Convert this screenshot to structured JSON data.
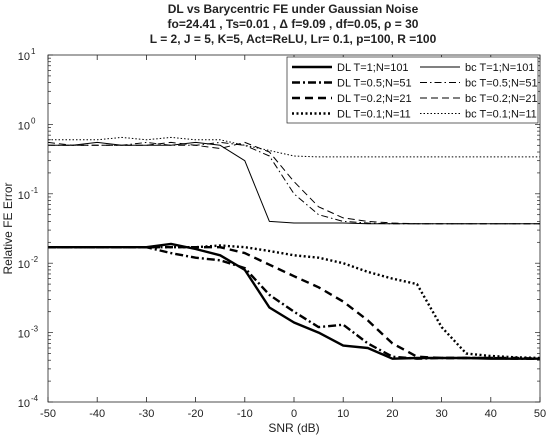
{
  "chart_data": {
    "type": "line",
    "title_lines": [
      "DL vs Barycentric FE under Gaussian Noise",
      "fo=24.41 , Ts=0.01 , Δ f=9.09 , df=0.05, ρ = 30",
      "L = 2, J = 5, K=5, Act=ReLU, Lr= 0.1, p=100, R =100"
    ],
    "xlabel": "SNR (dB)",
    "ylabel": "Relative FE Error",
    "xlim": [
      -50,
      50
    ],
    "ylim": [
      0.0001,
      10
    ],
    "yscale": "log",
    "xticks": [
      -50,
      -40,
      -30,
      -20,
      -10,
      0,
      10,
      20,
      30,
      40,
      50
    ],
    "xtick_labels": [
      "-50",
      "-40",
      "-30",
      "-20",
      "-10",
      "0",
      "10",
      "20",
      "30",
      "40",
      "50"
    ],
    "yticks": [
      0.0001,
      0.001,
      0.01,
      0.1,
      1,
      10
    ],
    "ytick_labels": [
      {
        "base": "10",
        "exp": "-4"
      },
      {
        "base": "10",
        "exp": "-3"
      },
      {
        "base": "10",
        "exp": "-2"
      },
      {
        "base": "10",
        "exp": "-1"
      },
      {
        "base": "10",
        "exp": "0"
      },
      {
        "base": "10",
        "exp": "1"
      }
    ],
    "grid": false,
    "legend_position": "top-right",
    "x": [
      -50,
      -45,
      -40,
      -35,
      -30,
      -25,
      -20,
      -15,
      -10,
      -5,
      0,
      5,
      10,
      15,
      20,
      25,
      30,
      35,
      40,
      45,
      50
    ],
    "series": [
      {
        "name": "DL T=1;N=101",
        "style": "solid",
        "weight": "thick",
        "values": [
          0.017,
          0.017,
          0.017,
          0.017,
          0.017,
          0.019,
          0.016,
          0.013,
          0.008,
          0.0023,
          0.0014,
          0.001,
          0.00065,
          0.0006,
          0.00042,
          0.00043,
          0.00043,
          0.00043,
          0.00042,
          0.00042,
          0.00042
        ]
      },
      {
        "name": "DL T=0.5;N=51",
        "style": "dashdot",
        "weight": "thick",
        "values": [
          0.017,
          0.017,
          0.017,
          0.017,
          0.017,
          0.014,
          0.012,
          0.011,
          0.0085,
          0.0035,
          0.002,
          0.0012,
          0.0013,
          0.0007,
          0.00045,
          0.00042,
          0.00043,
          0.00043,
          0.00043,
          0.00042,
          0.00042
        ]
      },
      {
        "name": "DL T=0.2;N=21",
        "style": "dashed",
        "weight": "thick",
        "values": [
          0.017,
          0.017,
          0.017,
          0.017,
          0.017,
          0.017,
          0.017,
          0.017,
          0.014,
          0.0095,
          0.0065,
          0.0045,
          0.0028,
          0.0015,
          0.0007,
          0.00045,
          0.00043,
          0.00043,
          0.00043,
          0.00043,
          0.00042
        ]
      },
      {
        "name": "DL T=0.1;N=11",
        "style": "dotted",
        "weight": "thick",
        "values": [
          0.017,
          0.017,
          0.017,
          0.017,
          0.017,
          0.017,
          0.017,
          0.018,
          0.017,
          0.015,
          0.013,
          0.012,
          0.01,
          0.0075,
          0.006,
          0.005,
          0.0012,
          0.0005,
          0.00046,
          0.00044,
          0.00043
        ]
      },
      {
        "name": "bc T=1;N=101",
        "style": "solid",
        "weight": "thin",
        "values": [
          0.5,
          0.5,
          0.55,
          0.5,
          0.5,
          0.5,
          0.55,
          0.5,
          0.3,
          0.04,
          0.038,
          0.038,
          0.038,
          0.037,
          0.037,
          0.037,
          0.037,
          0.037,
          0.037,
          0.037,
          0.037
        ]
      },
      {
        "name": "bc T=0.5;N=51",
        "style": "dashdot",
        "weight": "thin",
        "values": [
          0.5,
          0.5,
          0.5,
          0.5,
          0.55,
          0.5,
          0.5,
          0.55,
          0.5,
          0.35,
          0.1,
          0.05,
          0.04,
          0.038,
          0.037,
          0.037,
          0.037,
          0.037,
          0.037,
          0.037,
          0.037
        ]
      },
      {
        "name": "bc T=0.2;N=21",
        "style": "dashed",
        "weight": "thin",
        "values": [
          0.55,
          0.5,
          0.5,
          0.5,
          0.5,
          0.55,
          0.5,
          0.45,
          0.55,
          0.4,
          0.15,
          0.065,
          0.045,
          0.04,
          0.038,
          0.037,
          0.037,
          0.037,
          0.037,
          0.037,
          0.037
        ]
      },
      {
        "name": "bc T=0.1;N=11",
        "style": "dotted",
        "weight": "thin",
        "values": [
          0.6,
          0.6,
          0.6,
          0.65,
          0.6,
          0.65,
          0.6,
          0.6,
          0.5,
          0.42,
          0.35,
          0.34,
          0.34,
          0.34,
          0.34,
          0.34,
          0.34,
          0.34,
          0.34,
          0.34,
          0.34
        ]
      }
    ],
    "legend_layout": [
      [
        "DL T=1;N=101",
        "bc T=1;N=101"
      ],
      [
        "DL T=0.5;N=51",
        "bc T=0.5;N=51"
      ],
      [
        "DL T=0.2;N=21",
        "bc T=0.2;N=21"
      ],
      [
        "DL T=0.1;N=11",
        "bc T=0.1;N=11"
      ]
    ],
    "line_color": "#000000"
  }
}
